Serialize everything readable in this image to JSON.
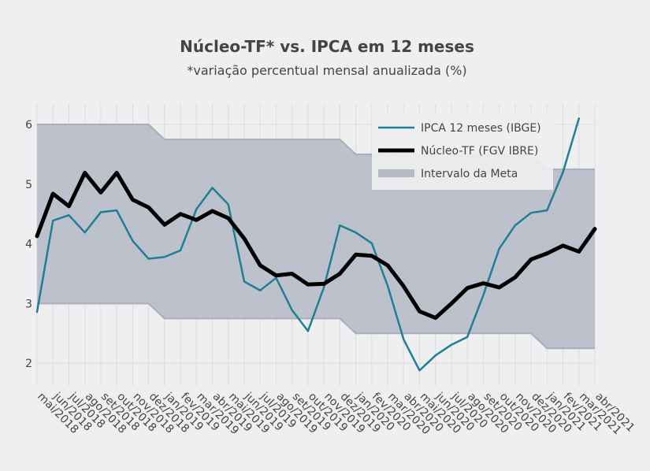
{
  "chart_data": {
    "type": "line",
    "title": "Núcleo-TF* vs. IPCA em 12 meses",
    "subtitle": "*variação percentual mensal anualizada (%)",
    "xlabel": "",
    "ylabel": "",
    "ylim": [
      1.6,
      6.3
    ],
    "yticks": [
      2,
      3,
      4,
      5,
      6
    ],
    "grid": true,
    "legend_position": "top-right",
    "categories": [
      "mai/2018",
      "jun/2018",
      "jul/2018",
      "ago/2018",
      "set/2018",
      "out/2018",
      "nov/2018",
      "dez/2018",
      "jan/2019",
      "fev/2019",
      "mar/2019",
      "abr/2019",
      "mai/2019",
      "jun/2019",
      "jul/2019",
      "ago/2019",
      "set/2019",
      "out/2019",
      "nov/2019",
      "dez/2019",
      "jan/2020",
      "fev/2020",
      "mar/2020",
      "abr/2020",
      "mai/2020",
      "jun/2020",
      "jul/2020",
      "ago/2020",
      "set/2020",
      "out/2020",
      "nov/2020",
      "dez/2020",
      "jan/2021",
      "fev/2021",
      "mar/2021",
      "abr/2021"
    ],
    "series": [
      {
        "name": "IPCA 12 meses (IBGE)",
        "color": "#1f7f95",
        "values": [
          2.86,
          4.39,
          4.48,
          4.19,
          4.53,
          4.56,
          4.05,
          3.75,
          3.78,
          3.89,
          4.58,
          4.94,
          4.66,
          3.37,
          3.22,
          3.43,
          2.89,
          2.54,
          3.27,
          4.31,
          4.19,
          4.01,
          3.3,
          2.4,
          1.88,
          2.13,
          2.31,
          2.44,
          3.14,
          3.92,
          4.31,
          4.52,
          4.56,
          5.2,
          6.1,
          null
        ]
      },
      {
        "name": "Núcleo-TF (FGV IBRE)",
        "color": "#000000",
        "values": [
          4.13,
          4.84,
          4.63,
          5.19,
          4.86,
          5.19,
          4.74,
          4.61,
          4.32,
          4.5,
          4.4,
          4.55,
          4.43,
          4.09,
          3.64,
          3.47,
          3.5,
          3.32,
          3.33,
          3.5,
          3.82,
          3.8,
          3.64,
          3.29,
          2.87,
          2.76,
          3.0,
          3.26,
          3.34,
          3.27,
          3.44,
          3.74,
          3.84,
          3.97,
          3.87,
          4.25
        ]
      }
    ],
    "band": {
      "name": "Intervalo da Meta",
      "color": "#b4b9c4",
      "lower": [
        3.0,
        3.0,
        3.0,
        3.0,
        3.0,
        3.0,
        3.0,
        3.0,
        2.75,
        2.75,
        2.75,
        2.75,
        2.75,
        2.75,
        2.75,
        2.75,
        2.75,
        2.75,
        2.75,
        2.75,
        2.5,
        2.5,
        2.5,
        2.5,
        2.5,
        2.5,
        2.5,
        2.5,
        2.5,
        2.5,
        2.5,
        2.5,
        2.25,
        2.25,
        2.25,
        2.25
      ],
      "upper": [
        6.0,
        6.0,
        6.0,
        6.0,
        6.0,
        6.0,
        6.0,
        6.0,
        5.75,
        5.75,
        5.75,
        5.75,
        5.75,
        5.75,
        5.75,
        5.75,
        5.75,
        5.75,
        5.75,
        5.75,
        5.5,
        5.5,
        5.5,
        5.5,
        5.5,
        5.5,
        5.5,
        5.5,
        5.5,
        5.5,
        5.5,
        5.5,
        5.25,
        5.25,
        5.25,
        5.25
      ]
    }
  }
}
